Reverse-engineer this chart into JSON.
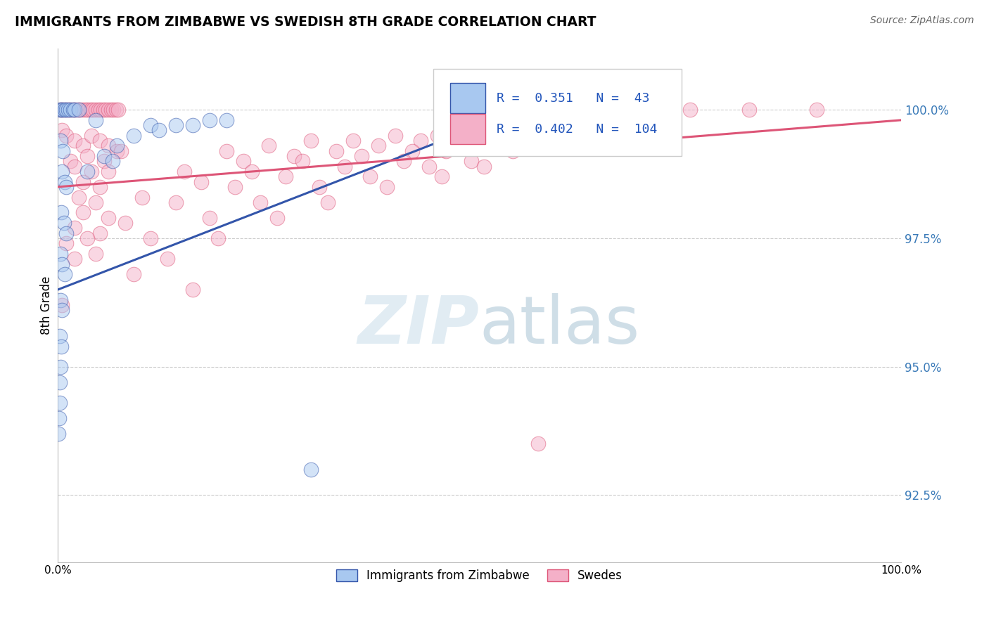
{
  "title": "IMMIGRANTS FROM ZIMBABWE VS SWEDISH 8TH GRADE CORRELATION CHART",
  "source": "Source: ZipAtlas.com",
  "ylabel": "8th Grade",
  "yticks": [
    92.5,
    95.0,
    97.5,
    100.0
  ],
  "ytick_labels": [
    "92.5%",
    "95.0%",
    "97.5%",
    "100.0%"
  ],
  "xmin": 0.0,
  "xmax": 100.0,
  "ymin": 91.2,
  "ymax": 101.2,
  "blue_label": "Immigrants from Zimbabwe",
  "pink_label": "Swedes",
  "blue_R": 0.351,
  "blue_N": 43,
  "pink_R": 0.402,
  "pink_N": 104,
  "blue_color": "#a8c8f0",
  "pink_color": "#f4b0c8",
  "blue_line_color": "#3355aa",
  "pink_line_color": "#dd5577",
  "blue_points": [
    [
      0.2,
      100.0
    ],
    [
      0.4,
      100.0
    ],
    [
      0.6,
      100.0
    ],
    [
      0.8,
      100.0
    ],
    [
      1.0,
      100.0
    ],
    [
      1.2,
      100.0
    ],
    [
      1.5,
      100.0
    ],
    [
      1.8,
      100.0
    ],
    [
      2.0,
      100.0
    ],
    [
      2.5,
      100.0
    ],
    [
      0.3,
      99.4
    ],
    [
      0.6,
      99.2
    ],
    [
      0.5,
      98.8
    ],
    [
      0.8,
      98.6
    ],
    [
      1.0,
      98.5
    ],
    [
      0.4,
      98.0
    ],
    [
      0.7,
      97.8
    ],
    [
      1.0,
      97.6
    ],
    [
      0.3,
      97.2
    ],
    [
      0.5,
      97.0
    ],
    [
      0.8,
      96.8
    ],
    [
      0.3,
      96.3
    ],
    [
      0.5,
      96.1
    ],
    [
      0.2,
      95.6
    ],
    [
      0.4,
      95.4
    ],
    [
      0.3,
      95.0
    ],
    [
      0.2,
      94.7
    ],
    [
      0.2,
      94.3
    ],
    [
      0.15,
      94.0
    ],
    [
      0.1,
      93.7
    ],
    [
      4.5,
      99.8
    ],
    [
      11.0,
      99.7
    ],
    [
      9.0,
      99.5
    ],
    [
      5.5,
      99.1
    ],
    [
      3.5,
      98.8
    ],
    [
      14.0,
      99.7
    ],
    [
      7.0,
      99.3
    ],
    [
      16.0,
      99.7
    ],
    [
      12.0,
      99.6
    ],
    [
      6.5,
      99.0
    ],
    [
      18.0,
      99.8
    ],
    [
      20.0,
      99.8
    ],
    [
      30.0,
      93.0
    ]
  ],
  "pink_points": [
    [
      0.3,
      100.0
    ],
    [
      0.6,
      100.0
    ],
    [
      0.9,
      100.0
    ],
    [
      1.2,
      100.0
    ],
    [
      1.5,
      100.0
    ],
    [
      1.8,
      100.0
    ],
    [
      2.1,
      100.0
    ],
    [
      2.4,
      100.0
    ],
    [
      2.7,
      100.0
    ],
    [
      3.0,
      100.0
    ],
    [
      3.3,
      100.0
    ],
    [
      3.6,
      100.0
    ],
    [
      3.9,
      100.0
    ],
    [
      4.2,
      100.0
    ],
    [
      4.5,
      100.0
    ],
    [
      4.8,
      100.0
    ],
    [
      5.1,
      100.0
    ],
    [
      5.4,
      100.0
    ],
    [
      5.7,
      100.0
    ],
    [
      6.0,
      100.0
    ],
    [
      6.3,
      100.0
    ],
    [
      6.6,
      100.0
    ],
    [
      6.9,
      100.0
    ],
    [
      7.2,
      100.0
    ],
    [
      62.0,
      100.0
    ],
    [
      68.0,
      100.0
    ],
    [
      75.0,
      100.0
    ],
    [
      82.0,
      100.0
    ],
    [
      90.0,
      100.0
    ],
    [
      0.5,
      99.6
    ],
    [
      1.0,
      99.5
    ],
    [
      2.0,
      99.4
    ],
    [
      3.0,
      99.3
    ],
    [
      4.0,
      99.5
    ],
    [
      5.0,
      99.4
    ],
    [
      6.0,
      99.3
    ],
    [
      7.0,
      99.2
    ],
    [
      1.5,
      99.0
    ],
    [
      3.5,
      99.1
    ],
    [
      5.5,
      99.0
    ],
    [
      7.5,
      99.2
    ],
    [
      2.0,
      98.9
    ],
    [
      4.0,
      98.8
    ],
    [
      6.0,
      98.8
    ],
    [
      3.0,
      98.6
    ],
    [
      5.0,
      98.5
    ],
    [
      2.5,
      98.3
    ],
    [
      4.5,
      98.2
    ],
    [
      3.0,
      98.0
    ],
    [
      6.0,
      97.9
    ],
    [
      2.0,
      97.7
    ],
    [
      5.0,
      97.6
    ],
    [
      1.0,
      97.4
    ],
    [
      3.5,
      97.5
    ],
    [
      2.0,
      97.1
    ],
    [
      4.5,
      97.2
    ],
    [
      20.0,
      99.2
    ],
    [
      25.0,
      99.3
    ],
    [
      30.0,
      99.4
    ],
    [
      35.0,
      99.4
    ],
    [
      40.0,
      99.5
    ],
    [
      45.0,
      99.5
    ],
    [
      50.0,
      99.6
    ],
    [
      55.0,
      99.6
    ],
    [
      15.0,
      98.8
    ],
    [
      22.0,
      99.0
    ],
    [
      28.0,
      99.1
    ],
    [
      33.0,
      99.2
    ],
    [
      38.0,
      99.3
    ],
    [
      43.0,
      99.4
    ],
    [
      48.0,
      99.4
    ],
    [
      53.0,
      99.5
    ],
    [
      10.0,
      98.3
    ],
    [
      17.0,
      98.6
    ],
    [
      23.0,
      98.8
    ],
    [
      29.0,
      99.0
    ],
    [
      36.0,
      99.1
    ],
    [
      42.0,
      99.2
    ],
    [
      47.0,
      99.3
    ],
    [
      52.0,
      99.4
    ],
    [
      8.0,
      97.8
    ],
    [
      14.0,
      98.2
    ],
    [
      21.0,
      98.5
    ],
    [
      27.0,
      98.7
    ],
    [
      34.0,
      98.9
    ],
    [
      41.0,
      99.0
    ],
    [
      46.0,
      99.2
    ],
    [
      51.0,
      99.3
    ],
    [
      11.0,
      97.5
    ],
    [
      18.0,
      97.9
    ],
    [
      24.0,
      98.2
    ],
    [
      31.0,
      98.5
    ],
    [
      37.0,
      98.7
    ],
    [
      44.0,
      98.9
    ],
    [
      49.0,
      99.0
    ],
    [
      54.0,
      99.2
    ],
    [
      9.0,
      96.8
    ],
    [
      13.0,
      97.1
    ],
    [
      19.0,
      97.5
    ],
    [
      26.0,
      97.9
    ],
    [
      32.0,
      98.2
    ],
    [
      39.0,
      98.5
    ],
    [
      45.5,
      98.7
    ],
    [
      50.5,
      98.9
    ],
    [
      16.0,
      96.5
    ],
    [
      0.5,
      96.2
    ],
    [
      57.0,
      93.5
    ]
  ],
  "watermark_zip": "ZIP",
  "watermark_atlas": "atlas",
  "watermark_color_zip": "#c8dce8",
  "watermark_color_atlas": "#b8ccd8",
  "grid_color": "#cccccc",
  "grid_style": "--"
}
